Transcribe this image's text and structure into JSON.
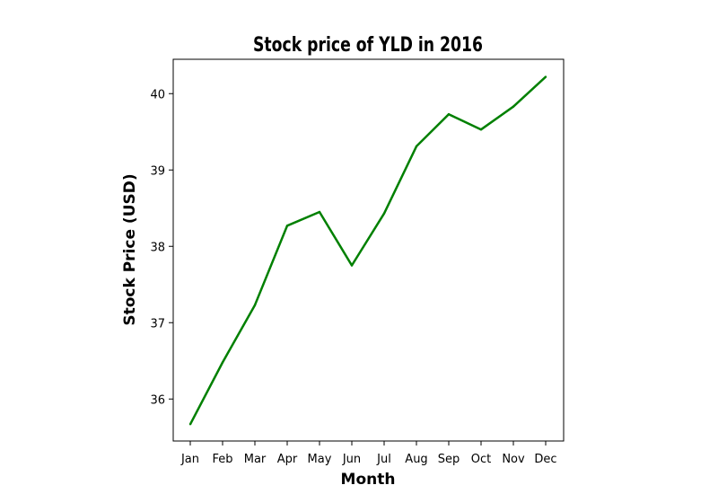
{
  "chart_data": {
    "type": "line",
    "title": "Stock price of YLD in 2016",
    "xlabel": "Month",
    "ylabel": "Stock Price (USD)",
    "categories": [
      "Jan",
      "Feb",
      "Mar",
      "Apr",
      "May",
      "Jun",
      "Jul",
      "Aug",
      "Sep",
      "Oct",
      "Nov",
      "Dec"
    ],
    "series": [
      {
        "color": "#008000",
        "values": [
          35.67,
          36.48,
          37.23,
          38.27,
          38.45,
          37.75,
          38.43,
          39.31,
          39.73,
          39.53,
          39.83,
          40.22
        ]
      }
    ],
    "yticks": [
      36,
      37,
      38,
      39,
      40
    ],
    "ylim": [
      35.45,
      40.45
    ],
    "grid": false,
    "legend": "none"
  }
}
